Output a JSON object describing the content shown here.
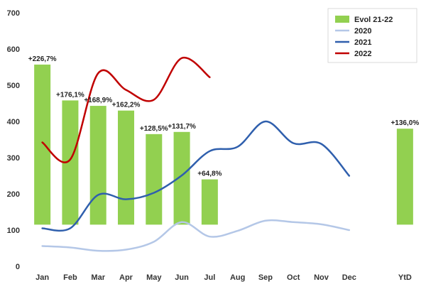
{
  "chart_data": {
    "type": "bar",
    "categories": [
      "Jan",
      "Feb",
      "Mar",
      "Apr",
      "May",
      "Jun",
      "Jul",
      "Aug",
      "Sep",
      "Oct",
      "Nov",
      "Dec",
      "",
      "YtD"
    ],
    "ylim": [
      0,
      700
    ],
    "yticks": [
      0,
      100,
      200,
      300,
      400,
      500,
      600,
      700
    ],
    "grid": false,
    "legend_position": "top-right",
    "bar_baseline": 115,
    "series": [
      {
        "name": "Evol 21-22",
        "type": "bar",
        "color": "#92d050",
        "values": [
          557,
          458,
          443,
          430,
          365,
          371,
          240,
          null,
          null,
          null,
          null,
          null,
          null,
          380
        ],
        "labels": [
          "+226,7%",
          "+176,1%",
          "+168,9%",
          "+162,2%",
          "+128,5%",
          "+131,7%",
          "+64,8%",
          "",
          "",
          "",
          "",
          "",
          "",
          "+136,0%"
        ]
      },
      {
        "name": "2020",
        "type": "line",
        "color": "#b4c7e7",
        "values": [
          56,
          52,
          43,
          46,
          68,
          122,
          82,
          98,
          126,
          122,
          116,
          100,
          null,
          null
        ]
      },
      {
        "name": "2021",
        "type": "line",
        "color": "#2f5fad",
        "values": [
          105,
          105,
          197,
          185,
          203,
          251,
          318,
          330,
          400,
          340,
          338,
          250,
          null,
          null
        ]
      },
      {
        "name": "2022",
        "type": "line",
        "color": "#c00000",
        "values": [
          342,
          295,
          533,
          487,
          460,
          575,
          522,
          null,
          null,
          null,
          null,
          null,
          null,
          null
        ]
      }
    ]
  }
}
